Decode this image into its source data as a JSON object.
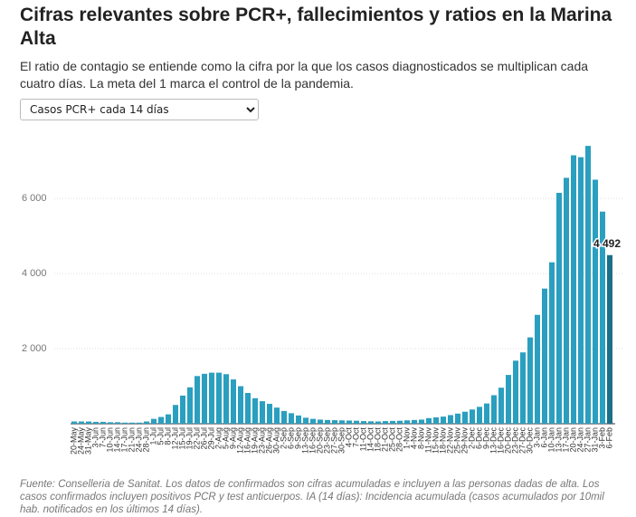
{
  "chart_data": {
    "type": "bar",
    "title": "Cifras relevantes sobre PCR+, fallecimientos y ratios en la Marina Alta",
    "subtitle": "El ratio de contagio se entiende como la cifra por la que los casos diagnosticados se multiplican cada cuatro días. La meta del 1 marca el control de la pandemia.",
    "selector": "Casos PCR+ cada 14 días",
    "note": "Fuente: Conselleria de Sanitat. Los datos de confirmados son cifras acumuladas e incluyen a las personas dadas de alta. Los casos confirmados incluyen positivos PCR y test anticuerpos. IA (14 días): Incidencia acumulada (casos acumulados por 10mil hab. notificados en los últimos 14 días).",
    "categories": [
      "20-May",
      "24-May",
      "31-May",
      "3-Jun",
      "7-Jun",
      "10-Jun",
      "14-Jun",
      "17-Jun",
      "21-Jun",
      "24-Jun",
      "28-Jun",
      "1-Jul",
      "5-Jul",
      "8-Jul",
      "12-Jul",
      "15-Jul",
      "19-Jul",
      "22-Jul",
      "26-Jul",
      "29-Jul",
      "2-Aug",
      "5-Aug",
      "9-Aug",
      "12-Aug",
      "16-Aug",
      "19-Aug",
      "23-Aug",
      "26-Aug",
      "30-Aug",
      "2-Sep",
      "6-Sep",
      "9-Sep",
      "13-Sep",
      "16-Sep",
      "20-Sep",
      "23-Sep",
      "27-Sep",
      "30-Sep",
      "4-Oct",
      "7-Oct",
      "11-Oct",
      "14-Oct",
      "18-Oct",
      "21-Oct",
      "25-Oct",
      "28-Oct",
      "1-Nov",
      "4-Nov",
      "8-Nov",
      "11-Nov",
      "15-Nov",
      "18-Nov",
      "22-Nov",
      "25-Nov",
      "29-Nov",
      "2-Dec",
      "6-Dec",
      "9-Dec",
      "13-Dec",
      "16-Dec",
      "20-Dec",
      "23-Dec",
      "27-Dec",
      "30-Dec",
      "3-Jan",
      "6-Jan",
      "10-Jan",
      "13-Jan",
      "17-Jan",
      "20-Jan",
      "24-Jan",
      "27-Jan",
      "31-Jan",
      "3-Feb",
      "6-Feb"
    ],
    "values": [
      60,
      60,
      60,
      50,
      50,
      40,
      40,
      30,
      30,
      30,
      60,
      130,
      180,
      250,
      500,
      750,
      970,
      1270,
      1330,
      1360,
      1360,
      1320,
      1180,
      1000,
      820,
      680,
      600,
      530,
      430,
      340,
      280,
      220,
      160,
      130,
      110,
      100,
      95,
      90,
      85,
      80,
      70,
      65,
      60,
      70,
      75,
      80,
      90,
      100,
      110,
      150,
      170,
      190,
      230,
      270,
      320,
      380,
      450,
      540,
      760,
      960,
      1300,
      1680,
      1900,
      2300,
      2900,
      3600,
      4300,
      6150,
      6550,
      7150,
      7100,
      7400,
      6500,
      5650,
      4492
    ],
    "value_labels": [
      null,
      null,
      null,
      null,
      null,
      null,
      null,
      null,
      null,
      null,
      null,
      null,
      null,
      null,
      null,
      null,
      null,
      null,
      null,
      null,
      null,
      null,
      null,
      null,
      null,
      null,
      null,
      null,
      null,
      null,
      null,
      null,
      null,
      null,
      null,
      null,
      null,
      null,
      null,
      null,
      null,
      null,
      null,
      null,
      null,
      null,
      null,
      null,
      null,
      null,
      null,
      null,
      null,
      null,
      null,
      null,
      null,
      null,
      null,
      null,
      null,
      null,
      null,
      null,
      null,
      null,
      null,
      null,
      null,
      null,
      null,
      null,
      null,
      null,
      "4 492"
    ],
    "color": "#2a9fbf",
    "highlight_color": "#1b6f89",
    "ylim": [
      0,
      7500
    ],
    "yticks": [
      {
        "value": 2000,
        "label": "2 000"
      },
      {
        "value": 4000,
        "label": "4 000"
      },
      {
        "value": 6000,
        "label": "6 000"
      }
    ],
    "grid": true
  }
}
